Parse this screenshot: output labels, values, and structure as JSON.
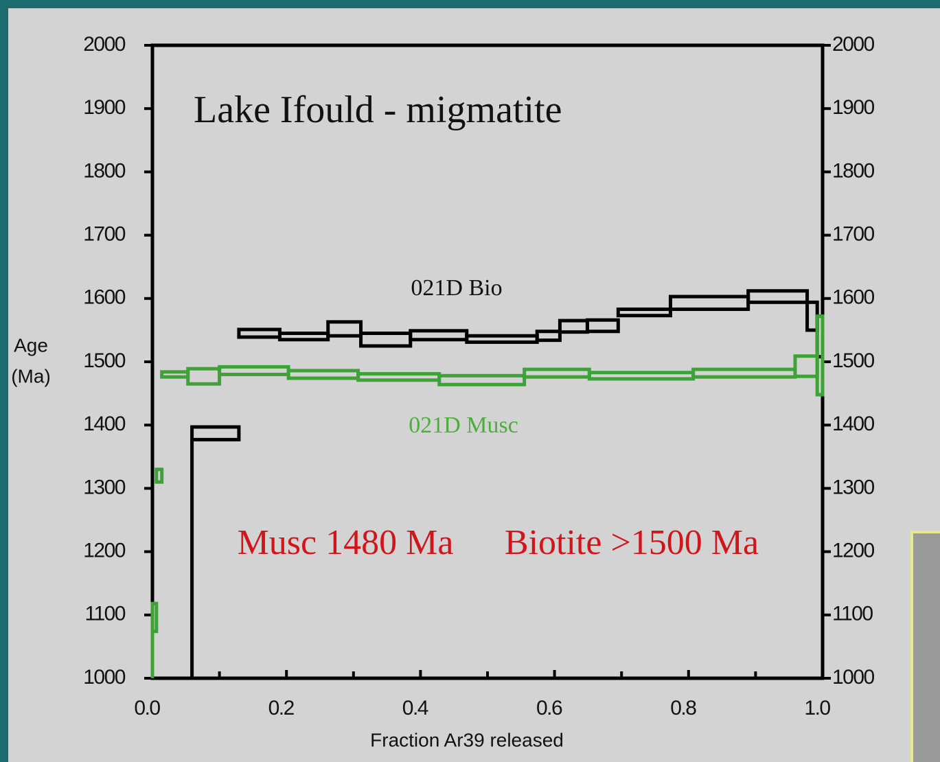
{
  "chart_data": {
    "type": "age-spectrum",
    "title": "Lake Ifould - migmatite",
    "x_label": "Fraction Ar39 released",
    "y_label": [
      "Age",
      "(Ma)"
    ],
    "annotations": [
      {
        "text": "021D Bio",
        "color": "#111111"
      },
      {
        "text": "021D Musc",
        "color": "#4caf3c"
      },
      {
        "text": "Musc 1480 Ma",
        "color": "#d0151b"
      },
      {
        "text": "Biotite >1500 Ma",
        "color": "#d0151b"
      }
    ],
    "xlim": [
      0,
      1
    ],
    "xticks": [
      {
        "value": 0,
        "label": "0.0"
      },
      0.2,
      0.4,
      0.6,
      0.8,
      {
        "value": 1,
        "label": "1.0"
      }
    ],
    "xminorticks": [
      0.1,
      0.3,
      0.5,
      0.7,
      0.9
    ],
    "ylim": [
      1000,
      2000
    ],
    "yticks": [
      1000,
      1100,
      1200,
      1300,
      1400,
      1500,
      1600,
      1700,
      1800,
      1900,
      2000
    ],
    "y2lim": [
      1000,
      2000
    ],
    "y2ticks": [
      1000,
      1100,
      1200,
      1300,
      1400,
      1500,
      1600,
      1700,
      1800,
      1900,
      2000
    ],
    "series": [
      {
        "name": "021D Bio",
        "color": "#000000",
        "bins": [
          0.059,
          0.129,
          0.19,
          0.262,
          0.311,
          0.385,
          0.469,
          0.574,
          0.608,
          0.649,
          0.695,
          0.773,
          0.889,
          0.977,
          0.992,
          1.0
        ],
        "values": [
          1387,
          1545,
          1540,
          1552,
          1535,
          1542,
          1536,
          1541,
          1556,
          1557,
          1578,
          1593,
          1603,
          1572,
          1540
        ],
        "errors": [
          10,
          6,
          5,
          11,
          10,
          7,
          5,
          7,
          9,
          9,
          5,
          10,
          9,
          22,
          32
        ]
      },
      {
        "name": "021D Musc",
        "color": "#3ea336",
        "bins": [
          0.0,
          0.006,
          0.014,
          0.053,
          0.1,
          0.203,
          0.307,
          0.428,
          0.555,
          0.652,
          0.807,
          0.959,
          0.992,
          1.0
        ],
        "values": [
          1096,
          1320,
          1480,
          1477,
          1486,
          1480,
          1476,
          1471,
          1482,
          1478,
          1482,
          1493,
          1510
        ],
        "errors": [
          22,
          10,
          4,
          12,
          6,
          6,
          5,
          7,
          6,
          5,
          6,
          16,
          62
        ]
      }
    ]
  }
}
